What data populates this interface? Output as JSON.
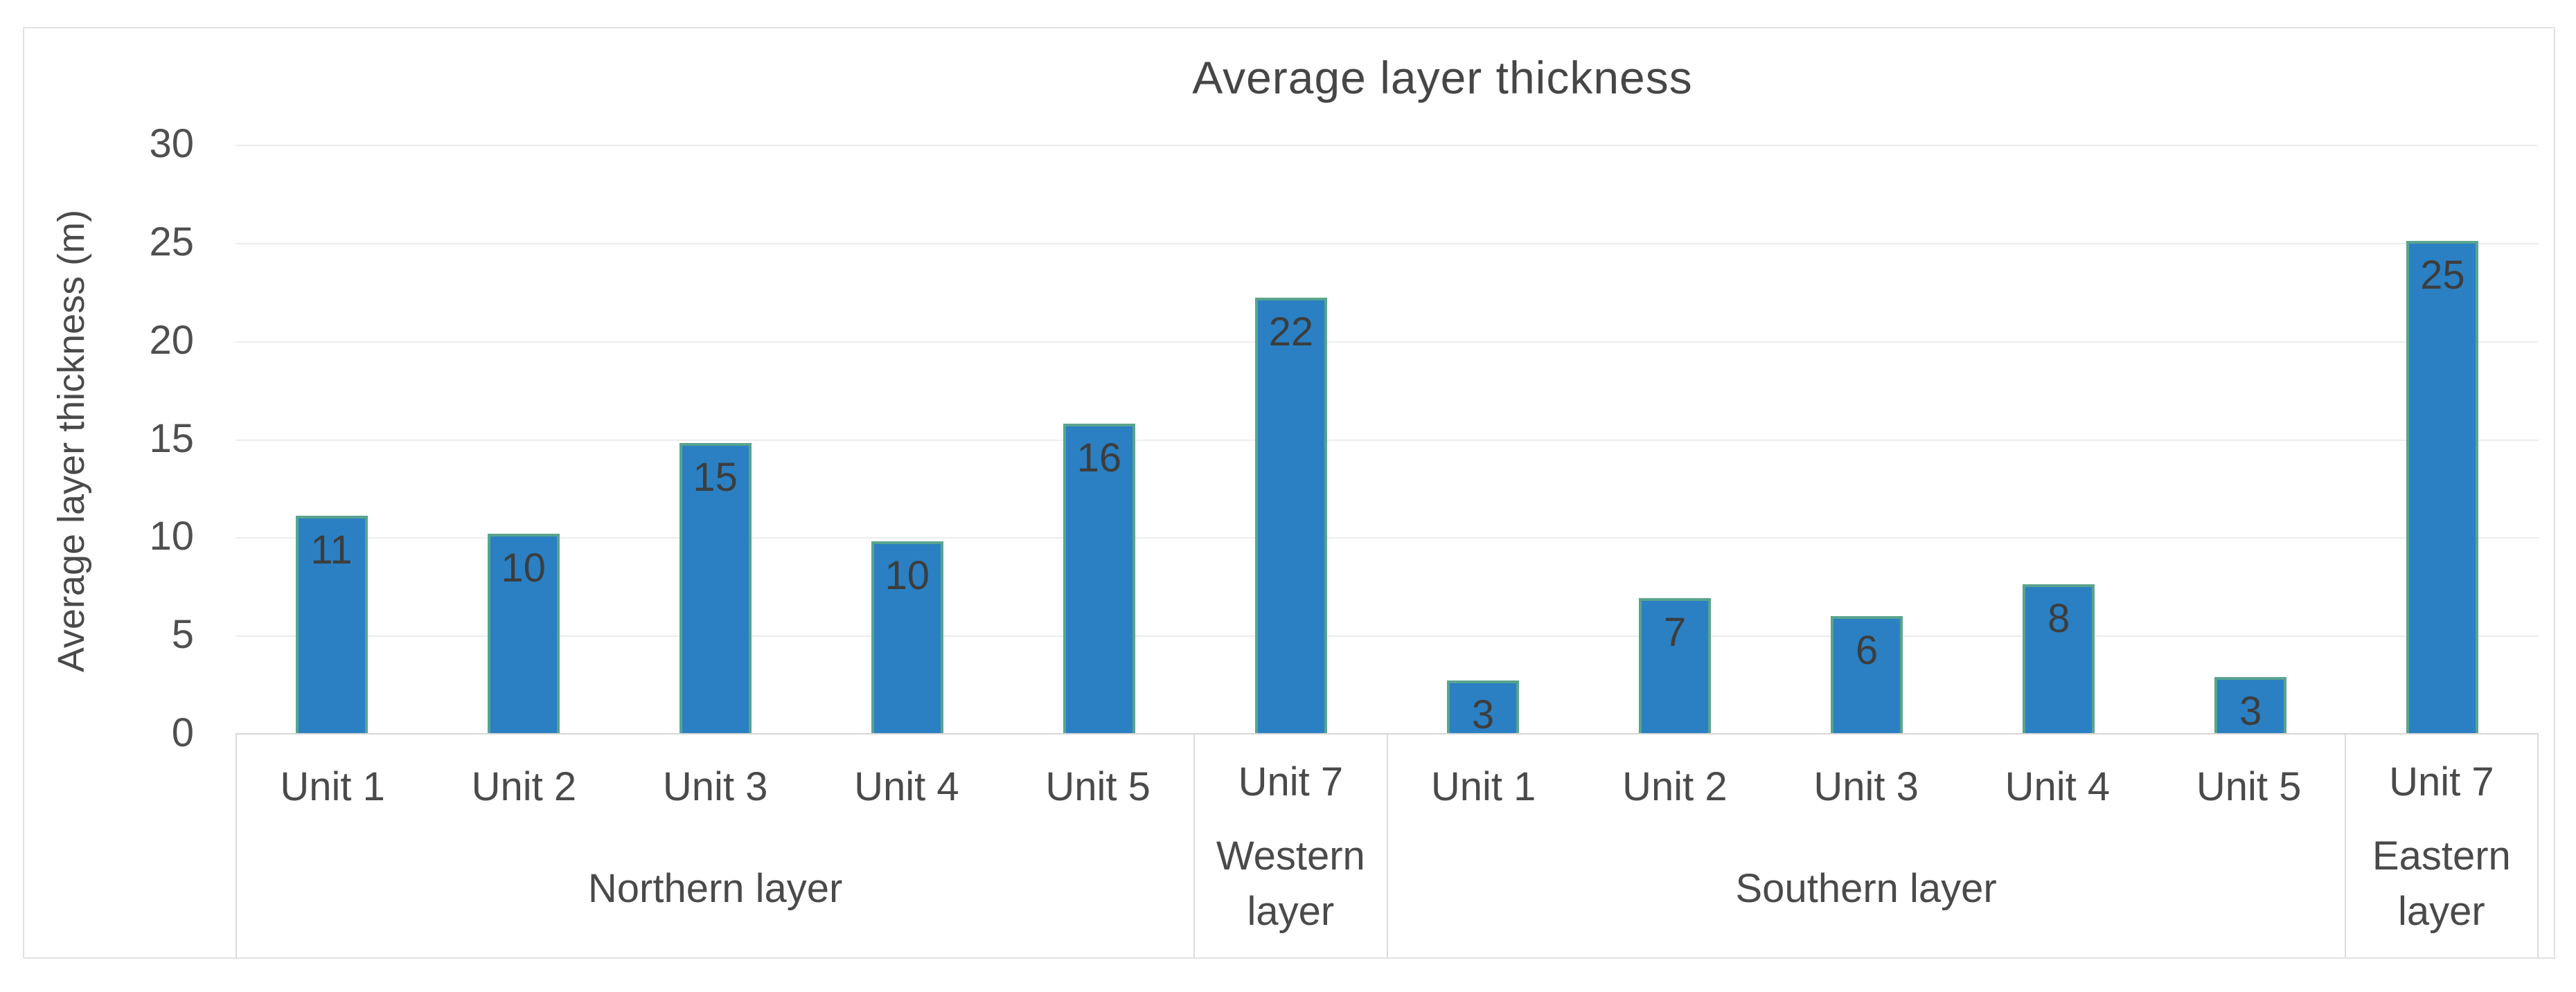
{
  "chart_data": {
    "type": "bar",
    "title": "Average layer thickness",
    "ylabel": "Average layer thickness (m)",
    "xlabel": "",
    "ylim": [
      0,
      30
    ],
    "yticks": [
      0,
      5,
      10,
      15,
      20,
      25,
      30
    ],
    "grid": true,
    "legend_position": "none",
    "data_label_position": "inside-end",
    "colors": {
      "bar_fill": "#2a80c2",
      "bar_edge_glow": "rgba(146,208,80,0.45)",
      "gridline": "#ededed",
      "axis_line": "#d7d7d7",
      "text": "#4a4a4a",
      "data_label": "#3d3d3d",
      "border": "#e2e2e2"
    },
    "groups": [
      {
        "label": "Northern layer",
        "units": [
          {
            "label": "Unit 1",
            "value": 11,
            "bar_height": 11.1
          },
          {
            "label": "Unit 2",
            "value": 10,
            "bar_height": 10.2
          },
          {
            "label": "Unit 3",
            "value": 15,
            "bar_height": 14.8
          },
          {
            "label": "Unit 4",
            "value": 10,
            "bar_height": 9.8
          },
          {
            "label": "Unit 5",
            "value": 16,
            "bar_height": 15.8
          }
        ]
      },
      {
        "label": "Western layer",
        "units": [
          {
            "label": "Unit 7",
            "value": 22,
            "bar_height": 22.2
          }
        ]
      },
      {
        "label": "Southern layer",
        "units": [
          {
            "label": "Unit 1",
            "value": 3,
            "bar_height": 2.7
          },
          {
            "label": "Unit 2",
            "value": 7,
            "bar_height": 6.9
          },
          {
            "label": "Unit 3",
            "value": 6,
            "bar_height": 6.0
          },
          {
            "label": "Unit 4",
            "value": 8,
            "bar_height": 7.6
          },
          {
            "label": "Unit 5",
            "value": 3,
            "bar_height": 2.9
          }
        ]
      },
      {
        "label": "Eastern layer",
        "units": [
          {
            "label": "Unit 7",
            "value": 25,
            "bar_height": 25.1
          }
        ]
      }
    ]
  }
}
